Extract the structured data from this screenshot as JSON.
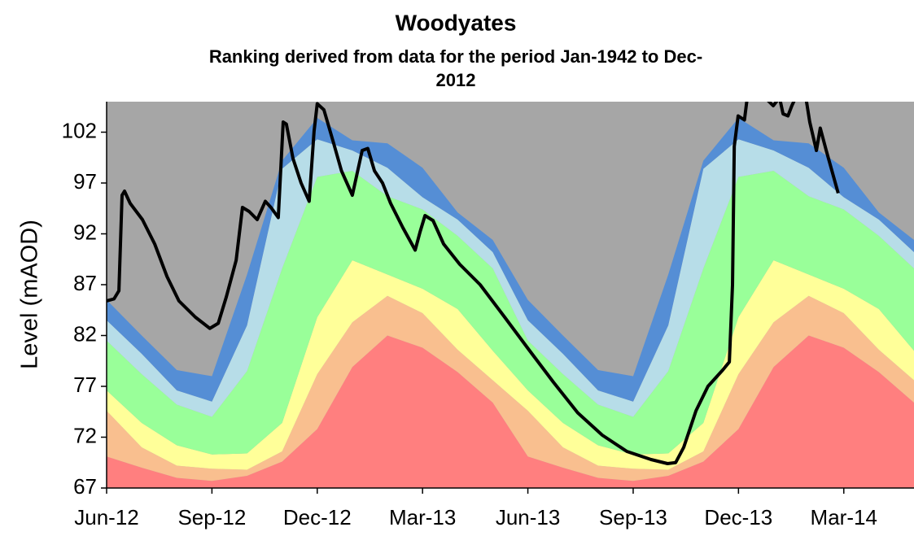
{
  "chart_data": {
    "type": "area-line",
    "title": "Woodyates",
    "subtitle": [
      "Ranking derived from data for the period Jan-1942 to Dec-",
      "2012"
    ],
    "y_label": "Level (mAOD)",
    "background": "#a6a6a6",
    "categories": [
      "Jun-12",
      null,
      null,
      "Sep-12",
      null,
      null,
      "Dec-12",
      null,
      null,
      "Mar-13",
      null,
      null,
      "Jun-13",
      null,
      null,
      "Sep-13",
      null,
      null,
      "Dec-13",
      null,
      null,
      "Mar-14",
      null,
      null
    ],
    "ylim": [
      67,
      105
    ],
    "yticks": [
      67,
      72,
      77,
      82,
      87,
      92,
      97,
      102
    ],
    "series": [
      {
        "color": "#ff7f7f",
        "values": [
          70.1,
          69.0,
          68.0,
          67.7,
          68.2,
          69.6,
          72.8,
          78.9,
          82.0,
          80.8,
          78.4,
          75.4,
          70.1,
          69.0,
          68.0,
          67.7,
          68.2,
          69.6,
          72.8,
          78.9,
          82.0,
          80.8,
          78.4,
          75.4
        ]
      },
      {
        "color": "#f9bf8f",
        "values": [
          4.5,
          2.0,
          1.2,
          1.2,
          0.6,
          1.0,
          5.4,
          4.4,
          3.9,
          3.4,
          2.2,
          2.2,
          4.5,
          2.0,
          1.2,
          1.2,
          0.6,
          1.0,
          5.4,
          4.4,
          3.9,
          3.4,
          2.2,
          2.2
        ]
      },
      {
        "color": "#ffff99",
        "values": [
          2.0,
          2.4,
          2.0,
          1.4,
          1.6,
          2.8,
          5.6,
          6.1,
          2.1,
          2.4,
          4.0,
          2.9,
          2.0,
          2.4,
          2.0,
          1.4,
          1.6,
          2.8,
          5.6,
          6.1,
          2.1,
          2.4,
          4.0,
          2.9
        ]
      },
      {
        "color": "#99ff99",
        "values": [
          4.9,
          4.8,
          4.0,
          3.7,
          8.1,
          15.2,
          13.8,
          8.8,
          7.7,
          7.8,
          7.2,
          8.1,
          4.9,
          4.8,
          4.0,
          3.7,
          8.1,
          15.2,
          13.8,
          8.8,
          7.7,
          7.8,
          7.2,
          8.1
        ]
      },
      {
        "color": "#b7dde8",
        "values": [
          2.0,
          2.0,
          1.4,
          1.5,
          4.5,
          9.8,
          3.7,
          2.0,
          2.8,
          1.2,
          1.6,
          1.6,
          2.0,
          2.0,
          1.4,
          1.5,
          4.5,
          9.8,
          3.7,
          2.0,
          2.8,
          1.2,
          1.6,
          1.6
        ]
      },
      {
        "color": "#558ed5",
        "values": [
          2.0,
          1.8,
          2.0,
          2.5,
          5.0,
          0.8,
          2.1,
          1.0,
          2.4,
          2.9,
          0.7,
          1.2,
          2.0,
          1.8,
          2.0,
          2.5,
          5.0,
          0.8,
          2.1,
          1.0,
          2.4,
          2.9,
          0.7,
          1.2
        ]
      }
    ],
    "line": {
      "color": "#000000",
      "x": [
        0,
        0.21,
        0.35,
        0.44,
        0.51,
        0.67,
        1.02,
        1.37,
        1.72,
        2.06,
        2.53,
        2.94,
        3.18,
        3.41,
        3.69,
        3.87,
        4.06,
        4.29,
        4.52,
        4.68,
        4.89,
        5.03,
        5.12,
        5.31,
        5.54,
        5.77,
        5.91,
        6.0,
        6.19,
        6.46,
        6.69,
        7.0,
        7.28,
        7.44,
        7.63,
        7.86,
        8.09,
        8.44,
        8.79,
        8.93,
        9.07,
        9.3,
        9.6,
        10.06,
        10.64,
        11.34,
        12.03,
        12.73,
        13.42,
        14.12,
        14.82,
        15.51,
        15.98,
        16.21,
        16.44,
        16.79,
        17.13,
        17.55,
        17.74,
        17.83,
        17.88,
        17.99,
        18.17,
        18.25,
        18.64,
        18.99,
        19.17,
        19.27,
        19.41,
        19.52,
        19.68,
        19.92,
        20.03,
        20.22,
        20.33,
        20.5,
        20.84
      ],
      "values": [
        85.4,
        85.6,
        86.4,
        95.8,
        96.2,
        95.0,
        93.4,
        91.0,
        87.8,
        85.4,
        83.8,
        82.7,
        83.2,
        85.8,
        89.4,
        94.6,
        94.2,
        93.4,
        95.2,
        94.6,
        93.6,
        103.0,
        102.8,
        99.4,
        97.0,
        95.2,
        102.1,
        104.8,
        104.2,
        101.0,
        98.2,
        95.8,
        100.2,
        100.4,
        98.2,
        97.0,
        95.0,
        92.6,
        90.4,
        92.2,
        93.8,
        93.3,
        91.0,
        89.0,
        87.0,
        83.8,
        80.6,
        77.4,
        74.4,
        72.2,
        70.6,
        69.8,
        69.4,
        69.5,
        71.0,
        74.6,
        77.0,
        78.6,
        79.4,
        87.0,
        100.6,
        103.6,
        103.2,
        105.4,
        105.8,
        104.6,
        105.4,
        103.8,
        103.6,
        104.6,
        105.8,
        105.4,
        103.0,
        100.2,
        102.4,
        100.2,
        96.0
      ]
    }
  }
}
